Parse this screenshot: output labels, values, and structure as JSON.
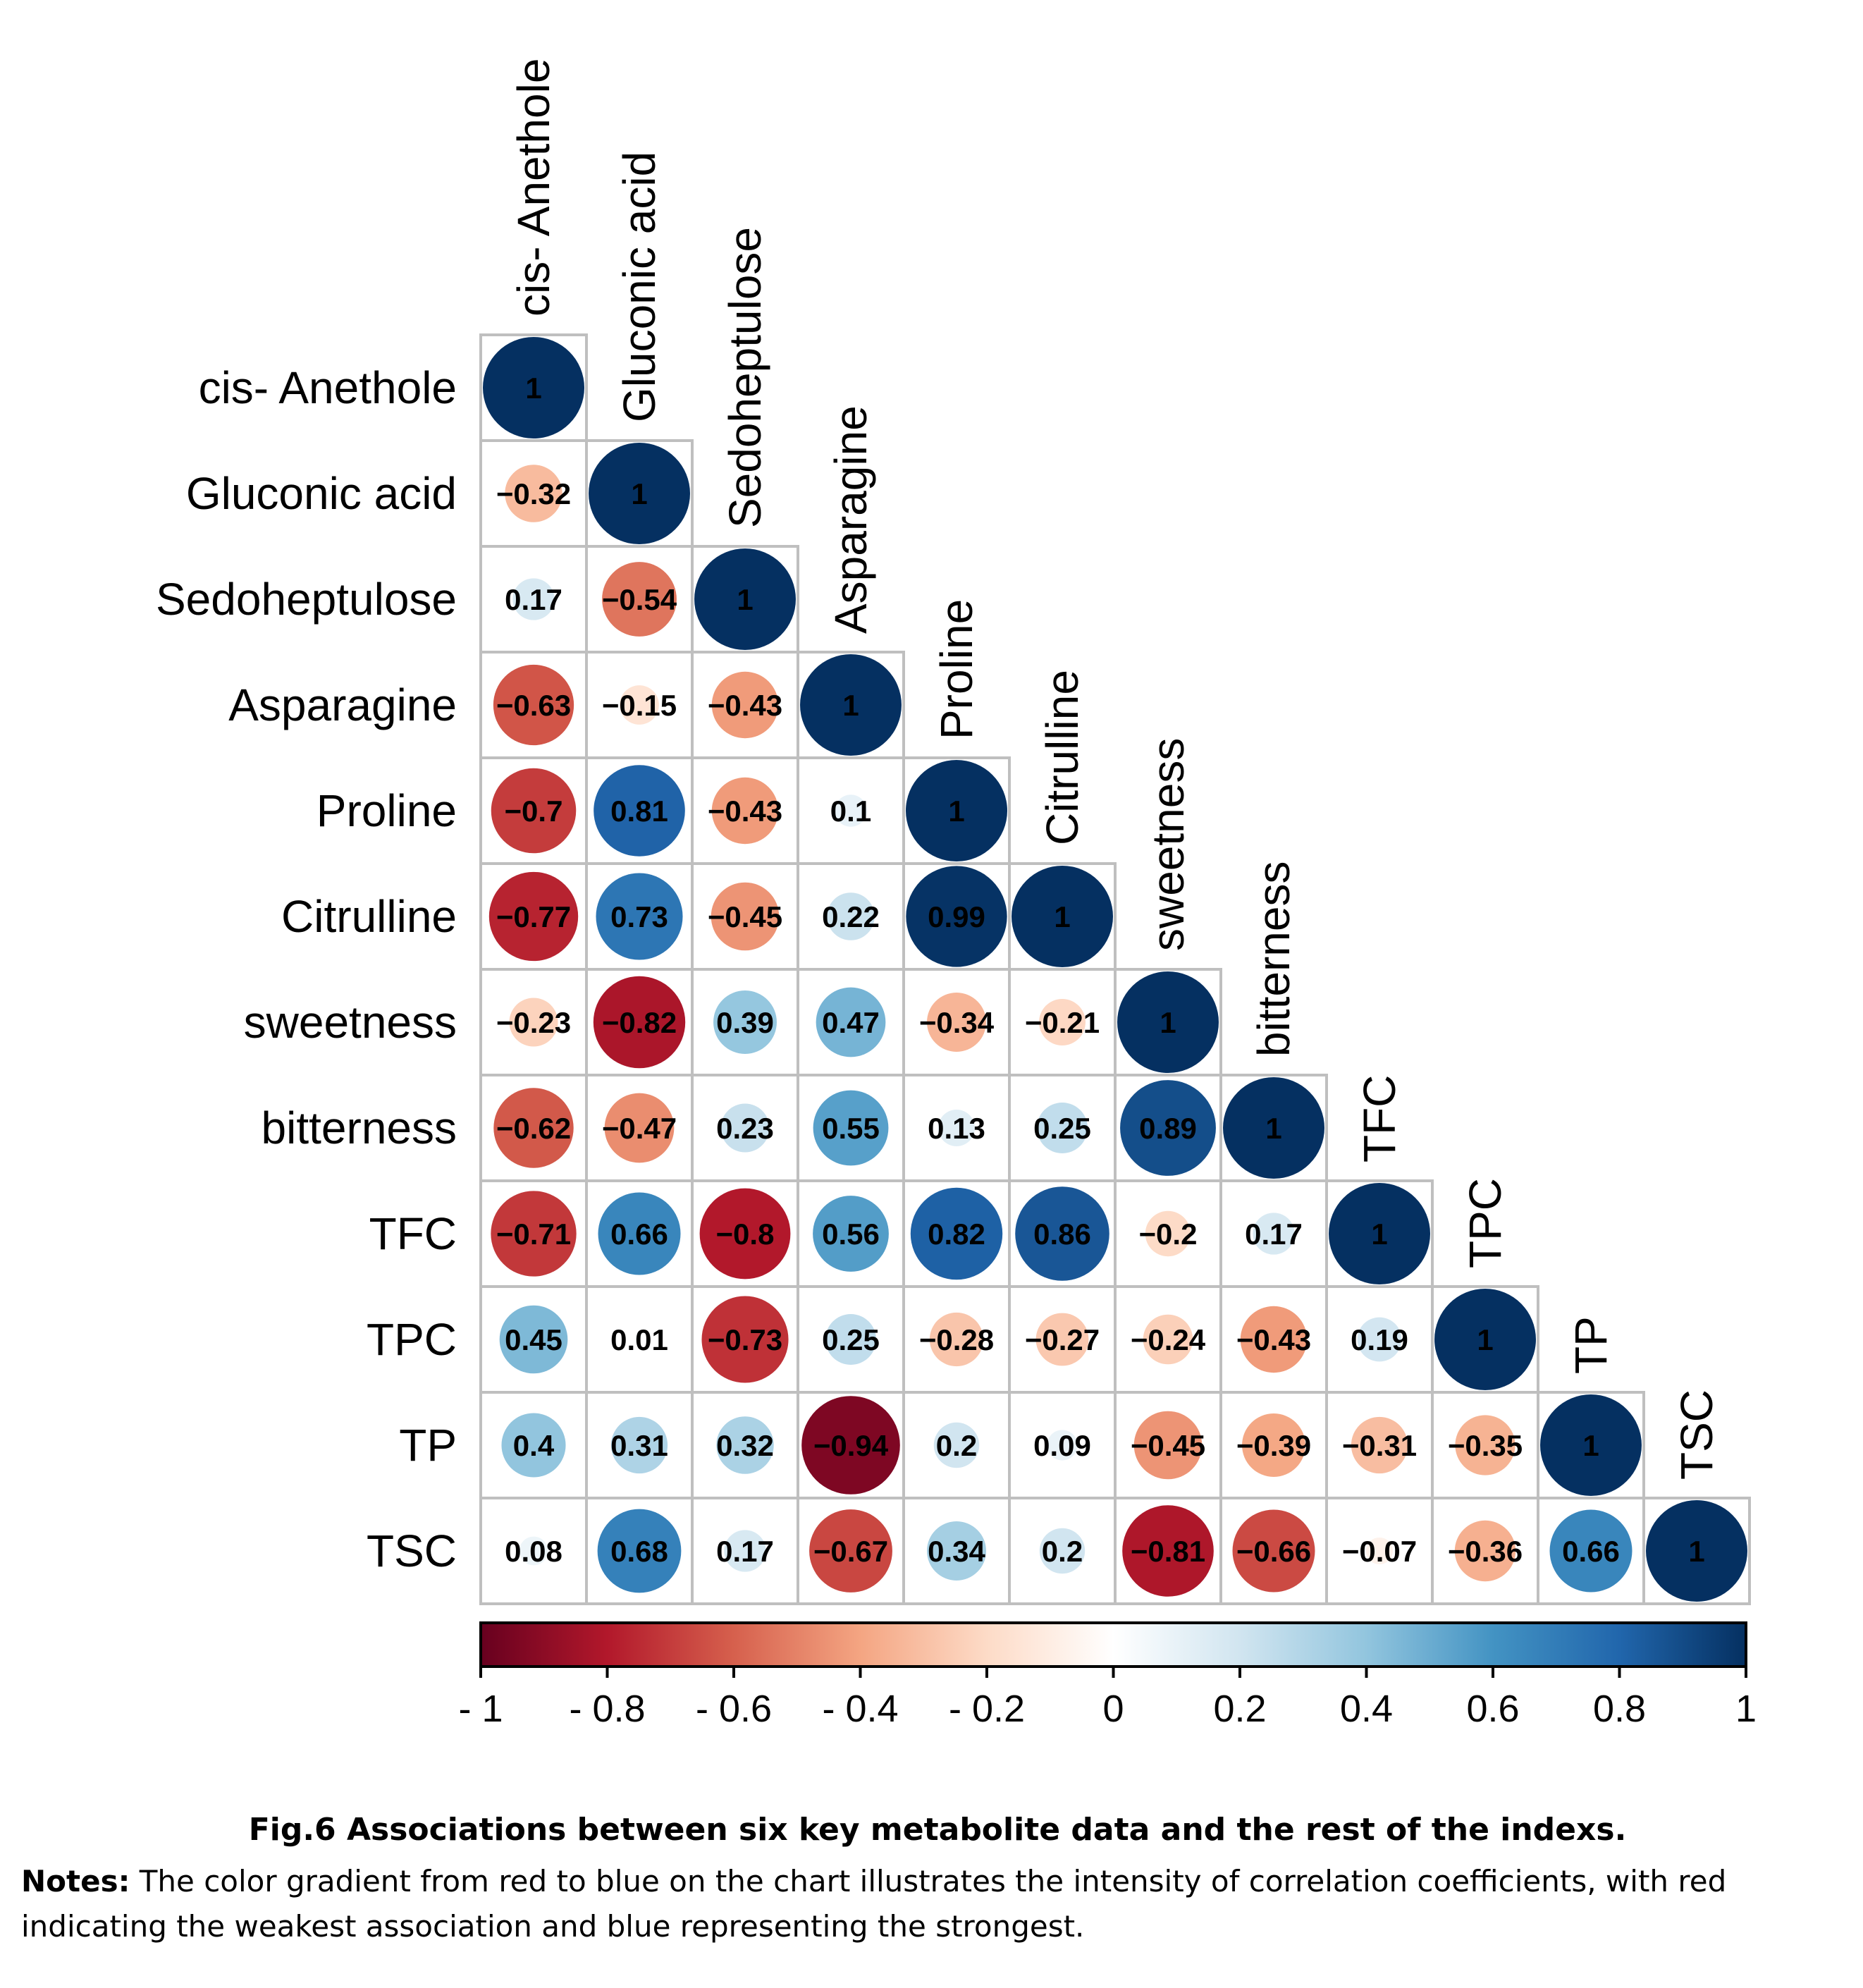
{
  "chart_data": {
    "type": "heatmap",
    "style": "lower-triangular correlation matrix with sized circles",
    "variables": [
      "cis- Anethole",
      "Gluconic acid",
      "Sedoheptulose",
      "Asparagine",
      "Proline",
      "Citrulline",
      "sweetness",
      "bitterness",
      "TFC",
      "TPC",
      "TP",
      "TSC"
    ],
    "matrix": [
      [
        "1"
      ],
      [
        "-0.32",
        "1"
      ],
      [
        "0.17",
        "-0.54",
        "1"
      ],
      [
        "-0.63",
        "-0.15",
        "-0.43",
        "1"
      ],
      [
        "-0.7",
        "0.81",
        "-0.43",
        "0.1",
        "1"
      ],
      [
        "-0.77",
        "0.73",
        "-0.45",
        "0.22",
        "0.99",
        "1"
      ],
      [
        "-0.23",
        "-0.82",
        "0.39",
        "0.47",
        "-0.34",
        "-0.21",
        "1"
      ],
      [
        "-0.62",
        "-0.47",
        "0.23",
        "0.55",
        "0.13",
        "0.25",
        "0.89",
        "1"
      ],
      [
        "-0.71",
        "0.66",
        "-0.8",
        "0.56",
        "0.82",
        "0.86",
        "-0.2",
        "0.17",
        "1"
      ],
      [
        "0.45",
        "0.01",
        "-0.73",
        "0.25",
        "-0.28",
        "-0.27",
        "-0.24",
        "-0.43",
        "0.19",
        "1"
      ],
      [
        "0.4",
        "0.31",
        "0.32",
        "-0.94",
        "0.2",
        "0.09",
        "-0.45",
        "-0.39",
        "-0.31",
        "-0.35",
        "1"
      ],
      [
        "0.08",
        "0.68",
        "0.17",
        "-0.67",
        "0.34",
        "0.2",
        "-0.81",
        "-0.66",
        "-0.07",
        "-0.36",
        "0.66",
        "1"
      ]
    ],
    "colorbar": {
      "range": [
        -1,
        1
      ],
      "ticks": [
        "- 1",
        "- 0.8",
        "- 0.6",
        "- 0.4",
        "- 0.2",
        "0",
        "0.2",
        "0.4",
        "0.6",
        "0.8",
        "1"
      ],
      "low_color": "#67001F",
      "mid_color": "#FFFFFF",
      "high_color": "#053061"
    },
    "grid": true
  },
  "colors": {
    "grid_line": "#BFBFBF",
    "text": "#000000"
  },
  "caption": {
    "title": "Fig.6 Associations between six key metabolite data and the rest of the indexs.",
    "notes_label": "Notes:",
    "notes_text": " The color gradient from red to blue on the chart illustrates the intensity of correlation coefficients, with red indicating the weakest association and blue representing the strongest."
  }
}
